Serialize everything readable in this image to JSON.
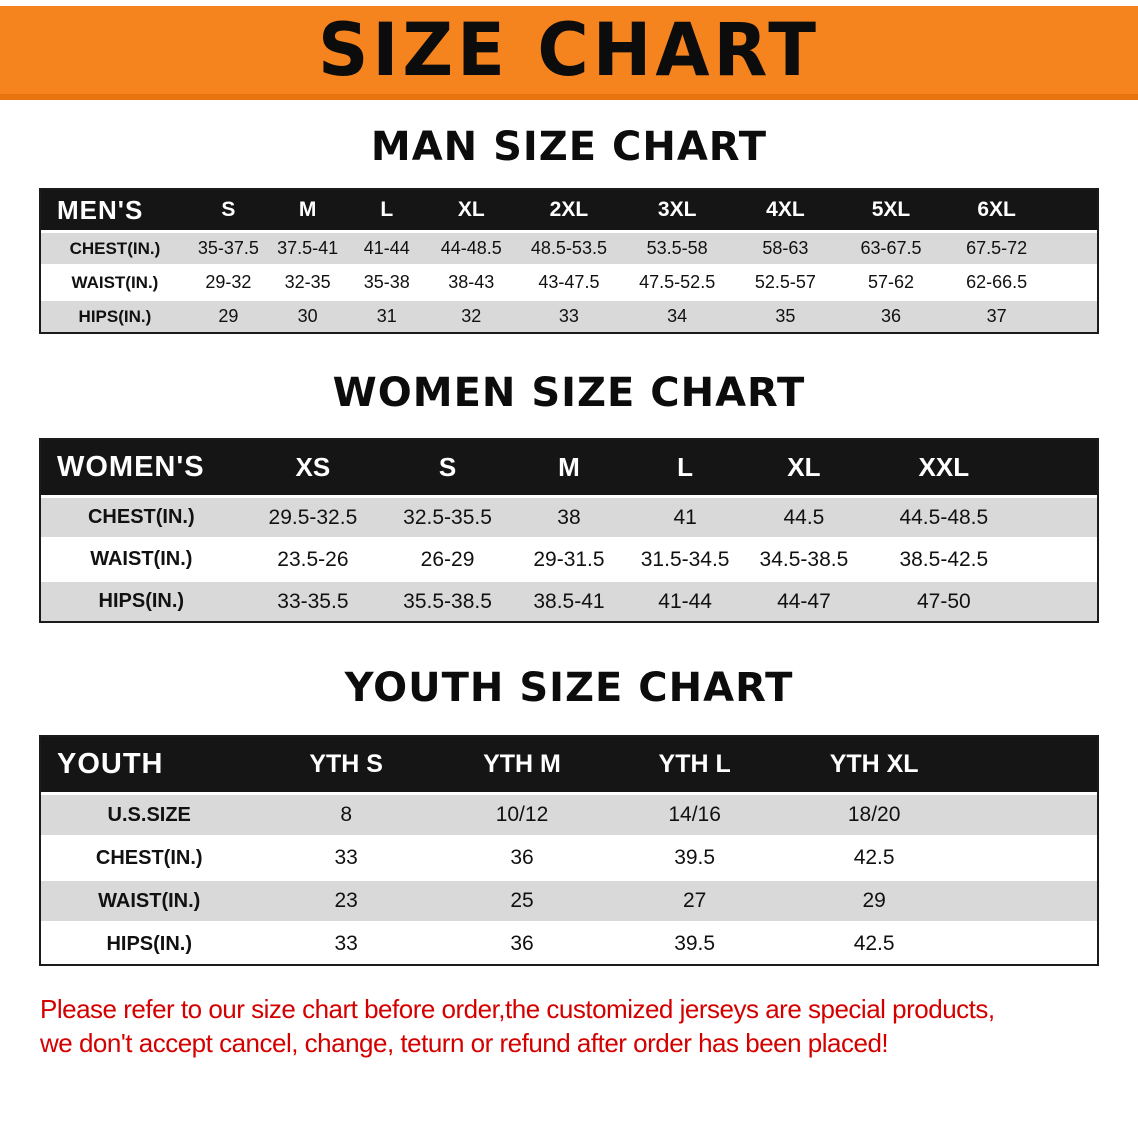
{
  "banner": {
    "title": "SIZE CHART"
  },
  "chart_data": [
    {
      "type": "table",
      "title": "MAN SIZE CHART",
      "header_label": "MEN'S",
      "columns": [
        "S",
        "M",
        "L",
        "XL",
        "2XL",
        "3XL",
        "4XL",
        "5XL",
        "6XL"
      ],
      "rows": [
        {
          "label": "CHEST(IN.)",
          "values": [
            "35-37.5",
            "37.5-41",
            "41-44",
            "44-48.5",
            "48.5-53.5",
            "53.5-58",
            "58-63",
            "63-67.5",
            "67.5-72"
          ]
        },
        {
          "label": "WAIST(IN.)",
          "values": [
            "29-32",
            "32-35",
            "35-38",
            "38-43",
            "43-47.5",
            "47.5-52.5",
            "52.5-57",
            "57-62",
            "62-66.5"
          ]
        },
        {
          "label": "HIPS(IN.)",
          "values": [
            "29",
            "30",
            "31",
            "32",
            "33",
            "34",
            "35",
            "36",
            "37"
          ]
        }
      ]
    },
    {
      "type": "table",
      "title": "WOMEN SIZE CHART",
      "header_label": "WOMEN'S",
      "columns": [
        "XS",
        "S",
        "M",
        "L",
        "XL",
        "XXL"
      ],
      "rows": [
        {
          "label": "CHEST(IN.)",
          "values": [
            "29.5-32.5",
            "32.5-35.5",
            "38",
            "41",
            "44.5",
            "44.5-48.5"
          ]
        },
        {
          "label": "WAIST(IN.)",
          "values": [
            "23.5-26",
            "26-29",
            "29-31.5",
            "31.5-34.5",
            "34.5-38.5",
            "38.5-42.5"
          ]
        },
        {
          "label": "HIPS(IN.)",
          "values": [
            "33-35.5",
            "35.5-38.5",
            "38.5-41",
            "41-44",
            "44-47",
            "47-50"
          ]
        }
      ]
    },
    {
      "type": "table",
      "title": "YOUTH SIZE CHART",
      "header_label": "YOUTH",
      "columns": [
        "YTH S",
        "YTH M",
        "YTH L",
        "YTH XL"
      ],
      "rows": [
        {
          "label": "U.S.SIZE",
          "values": [
            "8",
            "10/12",
            "14/16",
            "18/20"
          ]
        },
        {
          "label": "CHEST(IN.)",
          "values": [
            "33",
            "36",
            "39.5",
            "42.5"
          ]
        },
        {
          "label": "WAIST(IN.)",
          "values": [
            "23",
            "25",
            "27",
            "29"
          ]
        },
        {
          "label": "HIPS(IN.)",
          "values": [
            "33",
            "36",
            "39.5",
            "42.5"
          ]
        }
      ]
    }
  ],
  "footer": {
    "lines": [
      "Please refer to our size chart before order,the customized jerseys are special products,",
      "we don't accept cancel, change, teturn or refund after order has been placed!"
    ]
  },
  "colors": {
    "banner_bg": "#f5831e",
    "table_header_bg": "#151515",
    "row_shaded": "#d9d9d9",
    "row_plain": "#ffffff",
    "footer_red": "#d40000"
  }
}
